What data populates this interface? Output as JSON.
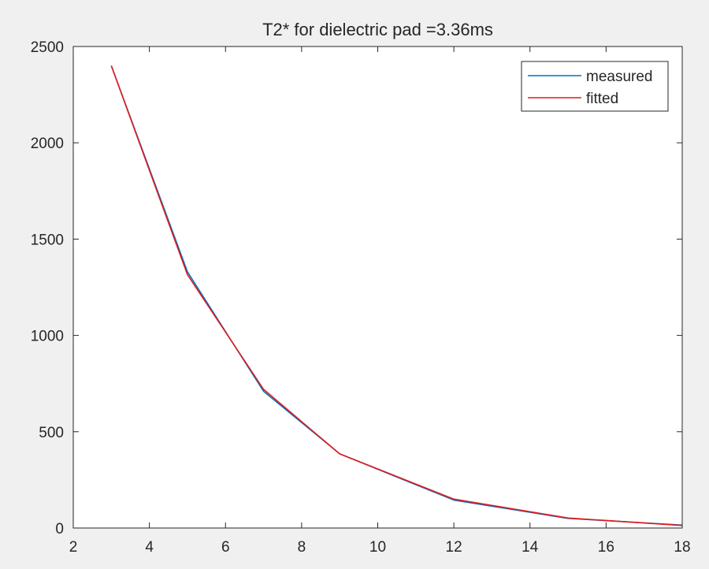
{
  "chart_data": {
    "type": "line",
    "title": "T2* for dielectric pad =3.36ms",
    "xlabel": "",
    "ylabel": "",
    "xlim": [
      2,
      18
    ],
    "ylim": [
      0,
      2500
    ],
    "xticks": [
      2,
      4,
      6,
      8,
      10,
      12,
      14,
      16,
      18
    ],
    "yticks": [
      0,
      500,
      1000,
      1500,
      2000,
      2500
    ],
    "grid": false,
    "legend_position": "top-right",
    "series": [
      {
        "name": "measured",
        "color": "#0072BD",
        "x": [
          3,
          5,
          7,
          9,
          12,
          15,
          18
        ],
        "y": [
          2400,
          1330,
          710,
          385,
          145,
          50,
          15
        ]
      },
      {
        "name": "fitted",
        "color": "#E41A1C",
        "x": [
          3,
          5,
          7,
          9,
          12,
          15,
          18
        ],
        "y": [
          2400,
          1315,
          720,
          385,
          150,
          52,
          13
        ]
      }
    ]
  }
}
